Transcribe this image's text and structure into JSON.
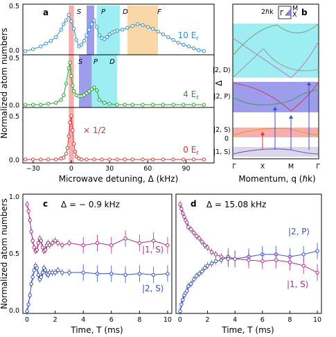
{
  "colors": {
    "blue": "#2f8fc8",
    "green": "#22a02a",
    "red": "#d83030",
    "magenta": "#b0288a",
    "dblue": "#2f50c8",
    "s_band": "#f4a0a0",
    "p_band": "#8c8ce8",
    "d_band": "#8ceaf0",
    "f_band": "#f8d098"
  },
  "panel_a": {
    "label": "a",
    "ylabel": "Normalized atom numbers",
    "xlabel": "Microwave detuning, Δ (kHz)",
    "xticks": [
      "−30",
      "0",
      "30",
      "60",
      "90"
    ],
    "band_labels_top": [
      "S",
      "P",
      "D",
      "F"
    ],
    "band_labels_mid": [
      "S",
      "P",
      "D"
    ],
    "yticks_top": [
      "0.5",
      "0.0"
    ],
    "yticks_mid": [
      "0.5",
      "0.0"
    ],
    "yticks_bot": [
      "0.5",
      "0.0"
    ],
    "trace_labels": [
      "10 E",
      "4 E",
      "0 E"
    ],
    "trace_sub": "r",
    "scale_note": "× 1/2"
  },
  "panel_b": {
    "label": "b",
    "ylabel": "Δ",
    "xlabel": "Momentum, q (ℏk)",
    "xticks": [
      "Γ",
      "X",
      "M",
      "Γ"
    ],
    "level_labels": [
      "|2, D⟩",
      "|2, P⟩",
      "|2, S⟩",
      "|1, S⟩"
    ],
    "zero_tick": "0",
    "inset_label": "2ℏk",
    "inset_letters": [
      "M",
      "Γ",
      "X"
    ]
  },
  "panel_c": {
    "label": "c",
    "title": "Δ = − 0.9 kHz",
    "ylabel": "Normalized atom numbers",
    "xlabel": "Time, T (ms)",
    "xticks": [
      "0",
      "2",
      "4",
      "6",
      "8",
      "10"
    ],
    "yticks": [
      "1.0",
      "0.5",
      "0.0"
    ],
    "state_labels": [
      "|1, S⟩",
      "|2, S⟩"
    ]
  },
  "panel_d": {
    "label": "d",
    "title": "Δ = 15.08 kHz",
    "xlabel": "Time, T (ms)",
    "xticks": [
      "0",
      "2",
      "4",
      "6",
      "8",
      "10"
    ],
    "state_labels": [
      "|2, P⟩",
      "|1, S⟩"
    ]
  },
  "chart_data": [
    {
      "type": "line",
      "panel": "a",
      "xlabel": "Microwave detuning, Δ (kHz)",
      "ylabel": "Normalized atom numbers",
      "xlim": [
        -38,
        112
      ],
      "series": [
        {
          "name": "10 E_r",
          "x": [
            -36,
            -30,
            -24,
            -20,
            -16,
            -12,
            -8,
            -6,
            -4,
            -2,
            0,
            2,
            4,
            6,
            8,
            10,
            12,
            14,
            16,
            18,
            20,
            22,
            24,
            26,
            28,
            30,
            32,
            34,
            36,
            40,
            44,
            48,
            52,
            56,
            60,
            64,
            68,
            72,
            76,
            80,
            84,
            88,
            92,
            96,
            100,
            104
          ],
          "y": [
            0.01,
            0.03,
            0.06,
            0.09,
            0.12,
            0.16,
            0.24,
            0.3,
            0.34,
            0.4,
            0.33,
            0.25,
            0.13,
            0.06,
            0.08,
            0.12,
            0.18,
            0.24,
            0.3,
            0.34,
            0.27,
            0.18,
            0.15,
            0.14,
            0.16,
            0.19,
            0.21,
            0.22,
            0.23,
            0.24,
            0.26,
            0.28,
            0.3,
            0.29,
            0.27,
            0.25,
            0.22,
            0.19,
            0.16,
            0.13,
            0.1,
            0.08,
            0.06,
            0.04,
            0.02,
            0.01
          ]
        },
        {
          "name": "4 E_r",
          "x": [
            -36,
            -30,
            -24,
            -18,
            -12,
            -8,
            -6,
            -4,
            -2,
            -1,
            0,
            1,
            2,
            4,
            6,
            8,
            10,
            12,
            14,
            16,
            18,
            20,
            22,
            26,
            30,
            36,
            42,
            48,
            56,
            64,
            72,
            80,
            88,
            96,
            104
          ],
          "y": [
            0.0,
            0.0,
            0.0,
            0.01,
            0.02,
            0.05,
            0.1,
            0.22,
            0.38,
            0.44,
            0.3,
            0.2,
            0.14,
            0.1,
            0.09,
            0.09,
            0.1,
            0.12,
            0.14,
            0.16,
            0.18,
            0.15,
            0.05,
            0.02,
            0.01,
            0.0,
            0.0,
            0.0,
            0.0,
            0.0,
            0.0,
            0.0,
            0.0,
            0.0,
            0.0
          ]
        },
        {
          "name": "0 E_r",
          "x": [
            -36,
            -30,
            -24,
            -18,
            -12,
            -8,
            -6,
            -4,
            -3,
            -2,
            -1,
            0,
            1,
            2,
            3,
            4,
            6,
            8,
            12,
            18,
            24,
            30,
            36,
            42,
            48,
            56,
            64,
            72,
            80,
            88,
            96,
            104
          ],
          "y": [
            0.0,
            0.0,
            0.0,
            0.0,
            0.0,
            0.01,
            0.02,
            0.06,
            0.12,
            0.24,
            0.38,
            0.45,
            0.3,
            0.16,
            0.08,
            0.03,
            0.01,
            0.0,
            0.0,
            0.0,
            0.0,
            0.0,
            0.0,
            0.0,
            0.0,
            0.0,
            0.0,
            0.0,
            0.0,
            0.0,
            0.0,
            0.0
          ]
        }
      ],
      "bands": [
        {
          "trace": "10 E_r",
          "label": "S",
          "x": [
            -2,
            2
          ]
        },
        {
          "trace": "10 E_r",
          "label": "P",
          "x": [
            12,
            18
          ]
        },
        {
          "trace": "10 E_r",
          "label": "D",
          "x": [
            20,
            38
          ]
        },
        {
          "trace": "10 E_r",
          "label": "F",
          "x": [
            44,
            68
          ]
        },
        {
          "trace": "4 E_r",
          "label": "S",
          "x": [
            -2,
            2
          ]
        },
        {
          "trace": "4 E_r",
          "label": "P",
          "x": [
            6,
            16
          ]
        },
        {
          "trace": "4 E_r",
          "label": "D",
          "x": [
            16,
            36
          ]
        },
        {
          "trace": "0 E_r",
          "label": "S",
          "x": [
            -2,
            2
          ]
        }
      ]
    },
    {
      "type": "scatter",
      "panel": "c",
      "xlabel": "Time, T (ms)",
      "ylabel": "Normalized atom numbers",
      "xlim": [
        -0.3,
        10.3
      ],
      "ylim": [
        0,
        1.05
      ],
      "series": [
        {
          "name": "|1, S⟩",
          "x": [
            0,
            0.1,
            0.2,
            0.3,
            0.4,
            0.5,
            0.6,
            0.7,
            0.8,
            0.9,
            1.0,
            1.1,
            1.2,
            1.3,
            1.4,
            1.5,
            1.6,
            1.8,
            2.0,
            2.2,
            2.5,
            3.0,
            4.0,
            5.0,
            6.0,
            7.0,
            8.0,
            9.0,
            10.0
          ],
          "y": [
            0.96,
            0.9,
            0.82,
            0.72,
            0.64,
            0.58,
            0.55,
            0.56,
            0.62,
            0.66,
            0.64,
            0.58,
            0.55,
            0.56,
            0.6,
            0.62,
            0.6,
            0.62,
            0.64,
            0.62,
            0.6,
            0.62,
            0.6,
            0.62,
            0.6,
            0.66,
            0.62,
            0.64,
            0.6
          ]
        },
        {
          "name": "|2, S⟩",
          "x": [
            0,
            0.1,
            0.2,
            0.3,
            0.4,
            0.5,
            0.6,
            0.7,
            0.8,
            0.9,
            1.0,
            1.1,
            1.2,
            1.3,
            1.4,
            1.5,
            1.6,
            1.8,
            2.0,
            2.2,
            2.5,
            3.0,
            4.0,
            5.0,
            6.0,
            7.0,
            8.0,
            9.0,
            10.0
          ],
          "y": [
            0.02,
            0.08,
            0.16,
            0.26,
            0.32,
            0.38,
            0.42,
            0.4,
            0.34,
            0.3,
            0.32,
            0.36,
            0.4,
            0.38,
            0.35,
            0.34,
            0.36,
            0.36,
            0.36,
            0.38,
            0.36,
            0.36,
            0.36,
            0.35,
            0.35,
            0.34,
            0.35,
            0.34,
            0.35
          ]
        }
      ]
    },
    {
      "type": "scatter",
      "panel": "d",
      "xlabel": "Time, T (ms)",
      "xlim": [
        -0.3,
        10.3
      ],
      "ylim": [
        0,
        1.05
      ],
      "series": [
        {
          "name": "|2, P⟩",
          "x": [
            0,
            0.1,
            0.2,
            0.3,
            0.4,
            0.5,
            0.6,
            0.8,
            1.0,
            1.2,
            1.4,
            1.6,
            1.8,
            2.0,
            2.3,
            2.6,
            3.0,
            3.5,
            4.0,
            5.0,
            6.0,
            7.0,
            8.0,
            9.0,
            10.0
          ],
          "y": [
            0.02,
            0.08,
            0.12,
            0.16,
            0.18,
            0.2,
            0.24,
            0.26,
            0.3,
            0.33,
            0.35,
            0.37,
            0.4,
            0.42,
            0.44,
            0.46,
            0.47,
            0.5,
            0.48,
            0.5,
            0.52,
            0.52,
            0.5,
            0.52,
            0.55
          ]
        },
        {
          "name": "|1, S⟩",
          "x": [
            0,
            0.1,
            0.2,
            0.3,
            0.4,
            0.5,
            0.6,
            0.8,
            1.0,
            1.2,
            1.4,
            1.6,
            1.8,
            2.0,
            2.3,
            2.6,
            3.0,
            3.5,
            4.0,
            5.0,
            6.0,
            7.0,
            8.0,
            9.0,
            10.0
          ],
          "y": [
            0.96,
            0.92,
            0.88,
            0.85,
            0.82,
            0.8,
            0.76,
            0.74,
            0.71,
            0.68,
            0.66,
            0.63,
            0.6,
            0.58,
            0.54,
            0.52,
            0.5,
            0.48,
            0.48,
            0.47,
            0.46,
            0.47,
            0.45,
            0.42,
            0.36
          ]
        }
      ]
    }
  ]
}
